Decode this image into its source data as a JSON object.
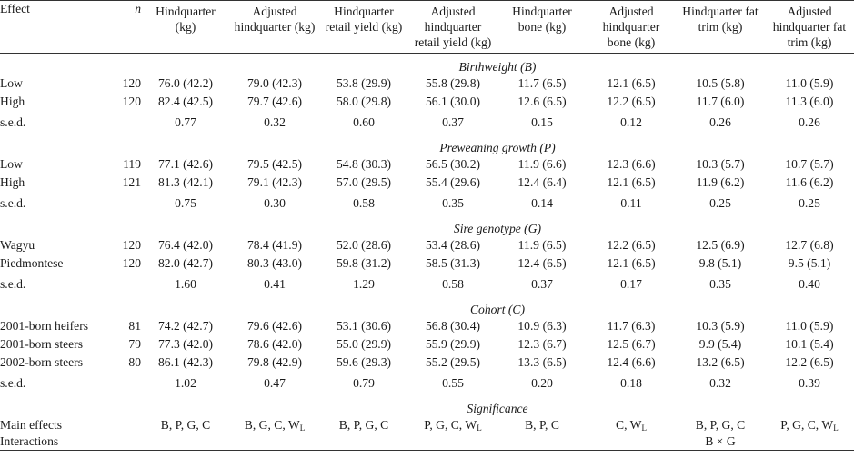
{
  "table": {
    "headers": [
      "Effect",
      "n",
      "Hindquarter (kg)",
      "Adjusted hindquarter (kg)",
      "Hindquarter retail yield (kg)",
      "Adjusted hindquarter retail yield (kg)",
      "Hindquarter bone (kg)",
      "Adjusted hindquarter bone (kg)",
      "Hindquarter fat trim (kg)",
      "Adjusted hindquarter fat trim (kg)"
    ],
    "sections": [
      {
        "title": "Birthweight (B)",
        "rows": [
          {
            "label": "Low",
            "n": "120",
            "values": [
              "76.0 (42.2)",
              "79.0 (42.3)",
              "53.8 (29.9)",
              "55.8 (29.8)",
              "11.7 (6.5)",
              "12.1 (6.5)",
              "10.5 (5.8)",
              "11.0 (5.9)"
            ]
          },
          {
            "label": "High",
            "n": "120",
            "values": [
              "82.4 (42.5)",
              "79.7 (42.6)",
              "58.0 (29.8)",
              "56.1 (30.0)",
              "12.6 (6.5)",
              "12.2 (6.5)",
              "11.7 (6.0)",
              "11.3 (6.0)"
            ]
          }
        ],
        "sed": {
          "label": "s.e.d.",
          "values": [
            "0.77",
            "0.32",
            "0.60",
            "0.37",
            "0.15",
            "0.12",
            "0.26",
            "0.26"
          ]
        }
      },
      {
        "title": "Preweaning growth (P)",
        "rows": [
          {
            "label": "Low",
            "n": "119",
            "values": [
              "77.1 (42.6)",
              "79.5 (42.5)",
              "54.8 (30.3)",
              "56.5 (30.2)",
              "11.9 (6.6)",
              "12.3 (6.6)",
              "10.3 (5.7)",
              "10.7 (5.7)"
            ]
          },
          {
            "label": "High",
            "n": "121",
            "values": [
              "81.3 (42.1)",
              "79.1 (42.3)",
              "57.0 (29.5)",
              "55.4 (29.6)",
              "12.4 (6.4)",
              "12.1 (6.5)",
              "11.9 (6.2)",
              "11.6 (6.2)"
            ]
          }
        ],
        "sed": {
          "label": "s.e.d.",
          "values": [
            "0.75",
            "0.30",
            "0.58",
            "0.35",
            "0.14",
            "0.11",
            "0.25",
            "0.25"
          ]
        }
      },
      {
        "title": "Sire genotype (G)",
        "rows": [
          {
            "label": "Wagyu",
            "n": "120",
            "values": [
              "76.4 (42.0)",
              "78.4 (41.9)",
              "52.0 (28.6)",
              "53.4 (28.6)",
              "11.9 (6.5)",
              "12.2 (6.5)",
              "12.5 (6.9)",
              "12.7 (6.8)"
            ]
          },
          {
            "label": "Piedmontese",
            "n": "120",
            "values": [
              "82.0 (42.7)",
              "80.3 (43.0)",
              "59.8 (31.2)",
              "58.5 (31.3)",
              "12.4 (6.5)",
              "12.1 (6.5)",
              "9.8 (5.1)",
              "9.5 (5.1)"
            ]
          }
        ],
        "sed": {
          "label": "s.e.d.",
          "values": [
            "1.60",
            "0.41",
            "1.29",
            "0.58",
            "0.37",
            "0.17",
            "0.35",
            "0.40"
          ]
        }
      },
      {
        "title": "Cohort (C)",
        "rows": [
          {
            "label": "2001-born heifers",
            "n": "81",
            "values": [
              "74.2 (42.7)",
              "79.6 (42.6)",
              "53.1 (30.6)",
              "56.8 (30.4)",
              "10.9 (6.3)",
              "11.7 (6.3)",
              "10.3 (5.9)",
              "11.0 (5.9)"
            ]
          },
          {
            "label": "2001-born steers",
            "n": "79",
            "values": [
              "77.3 (42.0)",
              "78.6 (42.0)",
              "55.0 (29.9)",
              "55.9 (29.9)",
              "12.3 (6.7)",
              "12.5 (6.7)",
              "9.9 (5.4)",
              "10.1 (5.4)"
            ]
          },
          {
            "label": "2002-born steers",
            "n": "80",
            "values": [
              "86.1 (42.3)",
              "79.8 (42.9)",
              "59.6 (29.3)",
              "55.2 (29.5)",
              "13.3 (6.5)",
              "12.4 (6.6)",
              "13.2 (6.5)",
              "12.2 (6.5)"
            ]
          }
        ],
        "sed": {
          "label": "s.e.d.",
          "values": [
            "1.02",
            "0.47",
            "0.79",
            "0.55",
            "0.20",
            "0.18",
            "0.32",
            "0.39"
          ]
        }
      }
    ],
    "significance": {
      "title": "Significance",
      "main_effects": {
        "label": "Main effects",
        "values": [
          {
            "text": "B, P, G, C",
            "sub": ""
          },
          {
            "text": "B, G, C, W",
            "sub": "L"
          },
          {
            "text": "B, P, G, C",
            "sub": ""
          },
          {
            "text": "P, G, C, W",
            "sub": "L"
          },
          {
            "text": "B, P, C",
            "sub": ""
          },
          {
            "text": "C, W",
            "sub": "L"
          },
          {
            "text": "B, P, G, C",
            "sub": ""
          },
          {
            "text": "P, G, C, W",
            "sub": "L"
          }
        ]
      },
      "interactions": {
        "label": "Interactions",
        "values": [
          "",
          "",
          "",
          "",
          "",
          "",
          "B × G",
          ""
        ]
      }
    }
  }
}
